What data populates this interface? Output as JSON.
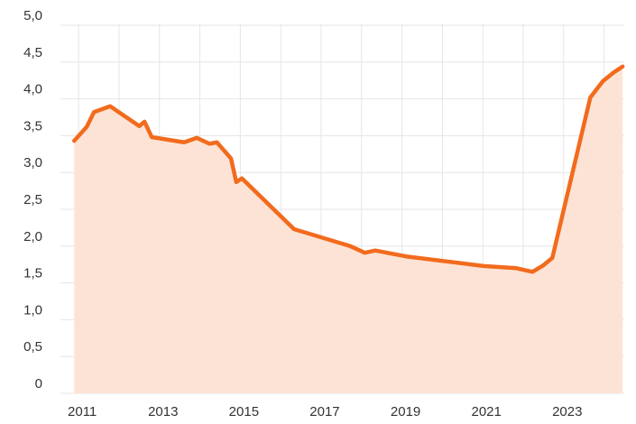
{
  "chart_data": {
    "type": "line",
    "x": [
      2010.89,
      2011.2,
      2011.38,
      2011.78,
      2012.5,
      2012.63,
      2012.81,
      2013.61,
      2013.92,
      2014.24,
      2014.42,
      2014.77,
      2014.9,
      2015.04,
      2016.33,
      2017.72,
      2018.08,
      2018.34,
      2019.1,
      2021.02,
      2021.83,
      2022.23,
      2022.5,
      2022.72,
      2023.66,
      2023.97,
      2024.24,
      2024.46
    ],
    "series": [
      {
        "color": "#f26b1d",
        "fill": "#fde3d5",
        "values": [
          3.43,
          3.62,
          3.82,
          3.9,
          3.63,
          3.69,
          3.48,
          3.41,
          3.47,
          3.39,
          3.41,
          3.19,
          2.87,
          2.92,
          2.23,
          2.0,
          1.91,
          1.94,
          1.86,
          1.73,
          1.7,
          1.65,
          1.74,
          1.84,
          4.02,
          4.24,
          4.36,
          4.44
        ]
      }
    ],
    "xlim": [
      2010.55,
      2024.5
    ],
    "xticks": [
      2011,
      2013,
      2015,
      2017,
      2019,
      2021,
      2023
    ],
    "xminor_ticks": [
      2012,
      2014,
      2016,
      2018,
      2020,
      2022,
      2024
    ],
    "ylim": [
      0,
      5
    ],
    "yticks": [
      0,
      {
        "value": 0.5,
        "label": "0,5"
      },
      {
        "value": 1,
        "label": "1,0"
      },
      {
        "value": 1.5,
        "label": "1,5"
      },
      {
        "value": 2,
        "label": "2,0"
      },
      {
        "value": 2.5,
        "label": "2,5"
      },
      {
        "value": 3,
        "label": "3,0"
      },
      {
        "value": 3.5,
        "label": "3,5"
      },
      {
        "value": 4,
        "label": "4,0"
      },
      {
        "value": 4.5,
        "label": "4,5"
      },
      {
        "value": 5,
        "label": "5,0"
      }
    ],
    "grid": true
  }
}
